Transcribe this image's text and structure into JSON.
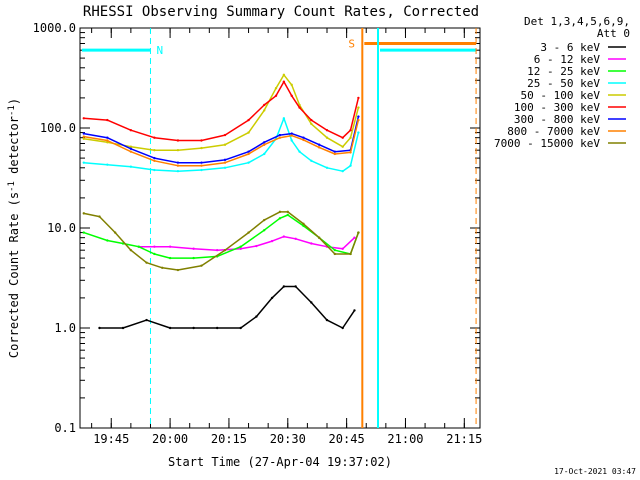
{
  "chart_data": {
    "type": "line",
    "title": "RHESSI Observing Summary Count Rates, Corrected",
    "xlabel": "Start Time (27-Apr-04 19:37:02)",
    "ylabel": "Corrected Count Rate (s",
    "ylabel_sup1": "-1",
    "ylabel_mid": " detector",
    "ylabel_sup2": "-1",
    "ylabel_end": ")",
    "y_scale": "log",
    "ylim": [
      0.1,
      1000
    ],
    "xlim": [
      "19:37:02",
      "21:19:00"
    ],
    "x_ticks": [
      "19:45",
      "20:00",
      "20:15",
      "20:30",
      "20:45",
      "21:00",
      "21:15"
    ],
    "y_ticks": [
      "0.1",
      "1.0",
      "10.0",
      "100.0",
      "1000.0"
    ],
    "grid": false,
    "legend_position": "right",
    "legend_title": [
      "Det 1,3,4,5,6,9,",
      "Att 0"
    ],
    "series": [
      {
        "name": "3 - 6 keV",
        "color": "#000000",
        "x": [
          "19:42",
          "19:48",
          "19:54",
          "20:00",
          "20:06",
          "20:12",
          "20:18",
          "20:22",
          "20:26",
          "20:29",
          "20:32",
          "20:36",
          "20:40",
          "20:44",
          "20:47"
        ],
        "y": [
          1.0,
          1.0,
          1.2,
          1.0,
          1.0,
          1.0,
          1.0,
          1.3,
          2.0,
          2.6,
          2.6,
          1.8,
          1.2,
          1.0,
          1.5
        ]
      },
      {
        "name": "6 - 12 keV",
        "color": "#ff00ff",
        "x": [
          "19:52",
          "19:56",
          "20:00",
          "20:06",
          "20:12",
          "20:18",
          "20:22",
          "20:26",
          "20:29",
          "20:32",
          "20:36",
          "20:40",
          "20:44",
          "20:47"
        ],
        "y": [
          6.5,
          6.5,
          6.5,
          6.2,
          6.0,
          6.2,
          6.6,
          7.4,
          8.2,
          7.8,
          7.0,
          6.5,
          6.2,
          8.0
        ]
      },
      {
        "name": "12 - 25 keV",
        "color": "#00ff00",
        "x": [
          "19:38",
          "19:44",
          "19:48",
          "19:52",
          "19:56",
          "20:00",
          "20:06",
          "20:12",
          "20:18",
          "20:24",
          "20:28",
          "20:30",
          "20:34",
          "20:38",
          "20:42",
          "20:46",
          "20:48"
        ],
        "y": [
          9.0,
          7.5,
          7.0,
          6.5,
          5.5,
          5.0,
          5.0,
          5.2,
          6.5,
          9.5,
          12.5,
          13.5,
          10.5,
          8.0,
          6.0,
          5.5,
          9.0
        ]
      },
      {
        "name": "25 - 50 keV",
        "color": "#00ffff",
        "x": [
          "19:38",
          "19:44",
          "19:50",
          "19:56",
          "20:02",
          "20:08",
          "20:14",
          "20:20",
          "20:24",
          "20:27",
          "20:29",
          "20:31",
          "20:33",
          "20:36",
          "20:40",
          "20:44",
          "20:46",
          "20:48"
        ],
        "y": [
          45,
          43,
          41,
          38,
          37,
          38,
          40,
          45,
          55,
          78,
          125,
          75,
          58,
          47,
          40,
          37,
          42,
          90
        ]
      },
      {
        "name": "50 - 100 keV",
        "color": "#cccc00",
        "x": [
          "19:38",
          "19:44",
          "19:50",
          "19:56",
          "20:02",
          "20:08",
          "20:14",
          "20:20",
          "20:24",
          "20:27",
          "20:29",
          "20:31",
          "20:33",
          "20:36",
          "20:40",
          "20:44",
          "20:46",
          "20:48"
        ],
        "y": [
          78,
          72,
          65,
          60,
          60,
          63,
          68,
          90,
          150,
          250,
          340,
          270,
          170,
          110,
          80,
          65,
          80,
          160
        ]
      },
      {
        "name": "100 - 300 keV",
        "color": "#ff0000",
        "x": [
          "19:38",
          "19:44",
          "19:50",
          "19:56",
          "20:02",
          "20:08",
          "20:14",
          "20:20",
          "20:24",
          "20:27",
          "20:29",
          "20:31",
          "20:33",
          "20:36",
          "20:40",
          "20:44",
          "20:46",
          "20:48"
        ],
        "y": [
          125,
          120,
          95,
          80,
          75,
          75,
          85,
          120,
          170,
          210,
          290,
          210,
          160,
          120,
          95,
          80,
          95,
          200
        ]
      },
      {
        "name": "300 - 800 keV",
        "color": "#0000ff",
        "x": [
          "19:38",
          "19:44",
          "19:50",
          "19:56",
          "20:02",
          "20:08",
          "20:14",
          "20:20",
          "20:24",
          "20:28",
          "20:31",
          "20:34",
          "20:38",
          "20:42",
          "20:46",
          "20:48"
        ],
        "y": [
          88,
          80,
          62,
          50,
          45,
          45,
          48,
          58,
          72,
          85,
          88,
          80,
          68,
          58,
          60,
          130
        ]
      },
      {
        "name": "800 - 7000 keV",
        "color": "#ff8000",
        "x": [
          "19:38",
          "19:44",
          "19:50",
          "19:56",
          "20:02",
          "20:08",
          "20:14",
          "20:20",
          "20:24",
          "20:28",
          "20:31",
          "20:34",
          "20:38",
          "20:42",
          "20:46",
          "20:48"
        ],
        "y": [
          82,
          75,
          58,
          47,
          42,
          42,
          45,
          55,
          68,
          80,
          84,
          76,
          64,
          55,
          57,
          120
        ]
      },
      {
        "name": "7000 - 15000 keV",
        "color": "#808000",
        "x": [
          "19:38",
          "19:42",
          "19:46",
          "19:50",
          "19:54",
          "19:58",
          "20:02",
          "20:08",
          "20:14",
          "20:20",
          "20:24",
          "20:28",
          "20:30",
          "20:34",
          "20:38",
          "20:42",
          "20:46",
          "20:48"
        ],
        "y": [
          14,
          13,
          9,
          6,
          4.5,
          4.0,
          3.8,
          4.2,
          6.0,
          9.0,
          12.0,
          14.5,
          14.5,
          11.0,
          8.0,
          5.5,
          5.5,
          9.0
        ]
      }
    ],
    "annotations": [
      {
        "label": "N",
        "time": "19:55",
        "color": "#00ffff",
        "style": "dashed",
        "bar_y": 600,
        "bar_from": "19:37:02",
        "bar_to": "19:55"
      },
      {
        "label": "S",
        "time": "20:49",
        "color": "#ff8000",
        "style": "solid",
        "bar_y": 700,
        "bar_from": "20:49",
        "bar_to": "21:18"
      },
      {
        "label": "",
        "time": "20:53",
        "color": "#00ffff",
        "style": "solid",
        "bar_y": 600,
        "bar_from": "20:53",
        "bar_to": "21:18"
      },
      {
        "label": "",
        "time": "21:18",
        "color": "#ff8000",
        "style": "dashed"
      }
    ],
    "timestamp": "17-Oct-2021 03:47"
  }
}
